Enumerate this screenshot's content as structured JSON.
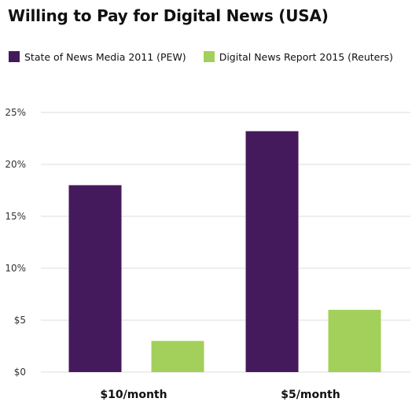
{
  "chart_data": {
    "type": "bar",
    "title": "Willing to Pay for Digital News (USA)",
    "categories": [
      "$10/month",
      "$5/month"
    ],
    "series": [
      {
        "name": "State of News Media 2011  (PEW)",
        "color": "#451a5c",
        "values": [
          18,
          23.2
        ]
      },
      {
        "name": "Digital News Report 2015 (Reuters)",
        "color": "#a3cf5b",
        "values": [
          3,
          6
        ]
      }
    ],
    "ylim": [
      0,
      25
    ],
    "yticks": [
      0,
      5,
      10,
      15,
      20,
      25
    ],
    "ytick_labels": [
      "$0",
      "$5",
      "10%",
      "15%",
      "20%",
      "25%"
    ],
    "xlabel": "",
    "ylabel": "",
    "grid": true,
    "legend": "top-left"
  }
}
